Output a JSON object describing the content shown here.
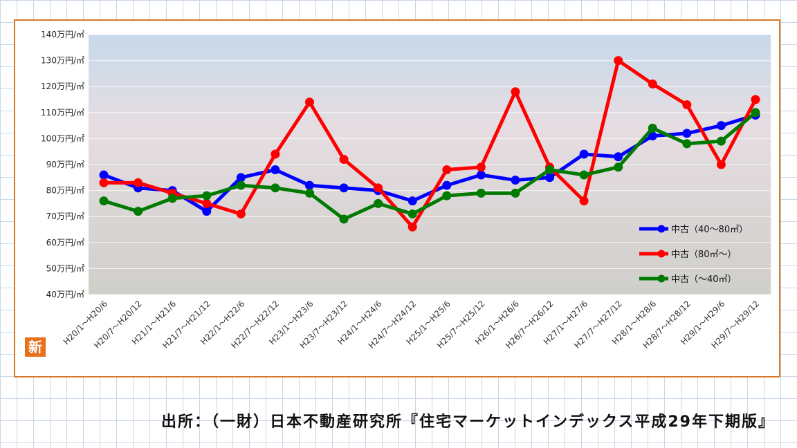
{
  "chart_data": {
    "type": "line",
    "categories": [
      "H20/1～H20/6",
      "H20/7～H20/12",
      "H21/1～H21/6",
      "H21/7～H21/12",
      "H22/1～H22/6",
      "H22/7～H22/12",
      "H23/1～H23/6",
      "H23/7～H23/12",
      "H24/1～H24/6",
      "H24/7～H24/12",
      "H25/1～H25/6",
      "H25/7～H25/12",
      "H26/1～H26/6",
      "H26/7～H26/12",
      "H27/1～H27/6",
      "H27/7～H27/12",
      "H28/1～H28/6",
      "H28/7～H28/12",
      "H29/1～H29/6",
      "H29/7～H29/12"
    ],
    "yticks": [
      "40万円/㎡",
      "50万円/㎡",
      "60万円/㎡",
      "70万円/㎡",
      "80万円/㎡",
      "90万円/㎡",
      "100万円/㎡",
      "110万円/㎡",
      "120万円/㎡",
      "130万円/㎡",
      "140万円/㎡"
    ],
    "ylim": [
      40,
      140
    ],
    "grid": true,
    "legend_position": "bottom-right",
    "series": [
      {
        "name": "中古（40～80㎡）",
        "color": "#0000ff",
        "values": [
          86,
          81,
          80,
          72,
          85,
          88,
          82,
          81,
          80,
          76,
          82,
          86,
          84,
          85,
          94,
          93,
          101,
          102,
          105,
          109
        ]
      },
      {
        "name": "中古（80㎡～）",
        "color": "#ff0000",
        "values": [
          83,
          83,
          79,
          75,
          71,
          94,
          114,
          92,
          81,
          66,
          88,
          89,
          118,
          89,
          76,
          130,
          121,
          113,
          90,
          115
        ]
      },
      {
        "name": "中古（～40㎡）",
        "color": "#007a00",
        "values": [
          76,
          72,
          77,
          78,
          82,
          81,
          79,
          69,
          75,
          71,
          78,
          79,
          79,
          88,
          86,
          89,
          104,
          98,
          99,
          110
        ]
      }
    ]
  },
  "logo_text": "新",
  "source_text": "出所：（一財）日本不動産研究所『住宅マーケットインデックス平成29年下期版』",
  "colors": {
    "frame": "#d4782a",
    "grid": "#c9d6e6"
  }
}
